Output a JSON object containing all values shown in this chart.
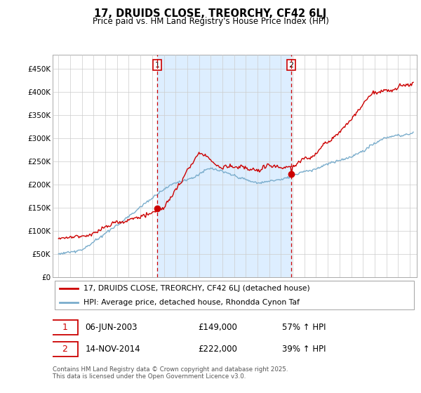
{
  "title": "17, DRUIDS CLOSE, TREORCHY, CF42 6LJ",
  "subtitle": "Price paid vs. HM Land Registry's House Price Index (HPI)",
  "legend_line1": "17, DRUIDS CLOSE, TREORCHY, CF42 6LJ (detached house)",
  "legend_line2": "HPI: Average price, detached house, Rhondda Cynon Taf",
  "annotation1_date": "06-JUN-2003",
  "annotation1_price": "£149,000",
  "annotation1_hpi": "57% ↑ HPI",
  "annotation2_date": "14-NOV-2014",
  "annotation2_price": "£222,000",
  "annotation2_hpi": "39% ↑ HPI",
  "footer": "Contains HM Land Registry data © Crown copyright and database right 2025.\nThis data is licensed under the Open Government Licence v3.0.",
  "line_color_red": "#cc0000",
  "line_color_blue": "#7aadcc",
  "shade_color": "#ddeeff",
  "dashed_line_color": "#cc0000",
  "annotation_box_color": "#cc0000",
  "background_color": "#ffffff",
  "grid_color": "#cccccc",
  "ylim": [
    0,
    480000
  ],
  "yticks": [
    0,
    50000,
    100000,
    150000,
    200000,
    250000,
    300000,
    350000,
    400000,
    450000
  ],
  "sale1_year": 2003.44,
  "sale1_price": 149000,
  "sale2_year": 2014.87,
  "sale2_price": 222000
}
